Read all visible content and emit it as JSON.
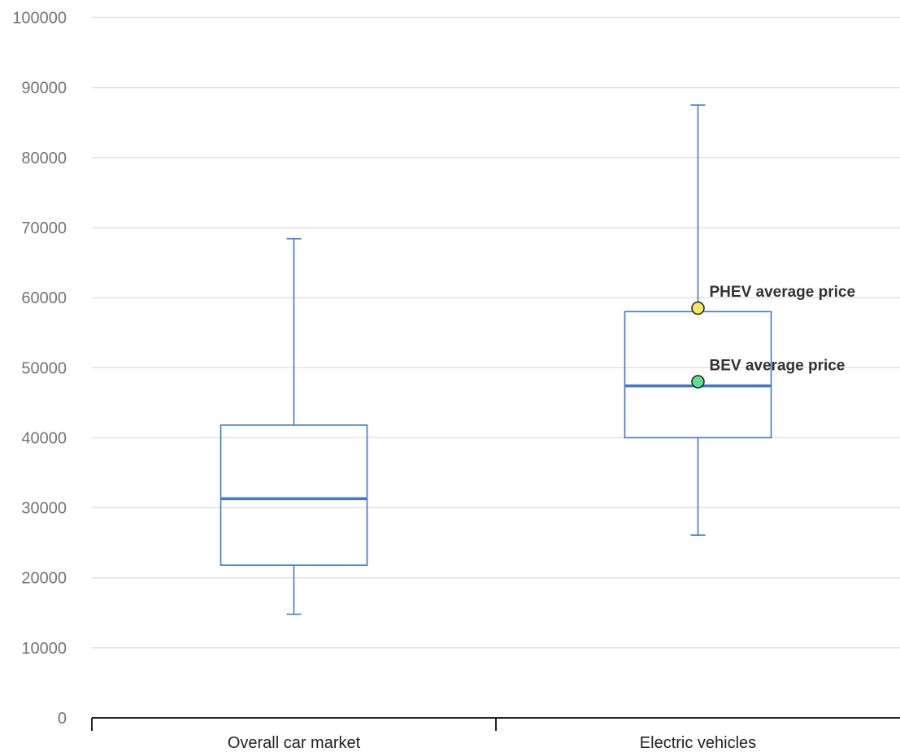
{
  "chart_data": {
    "type": "box",
    "title": "",
    "xlabel": "",
    "ylabel": "",
    "ylim": [
      0,
      100000
    ],
    "yticks": [
      "0",
      "10000",
      "20000",
      "30000",
      "40000",
      "50000",
      "60000",
      "70000",
      "80000",
      "90000",
      "100000"
    ],
    "grid": true,
    "categories": [
      "Overall car market",
      "Electric vehicles"
    ],
    "boxes": [
      {
        "category": "Overall car market",
        "min": 14800,
        "q1": 21800,
        "median": 31300,
        "q3": 41800,
        "max": 68400
      },
      {
        "category": "Electric vehicles",
        "min": 26100,
        "q1": 40000,
        "median": 47400,
        "q3": 58000,
        "max": 87500
      }
    ],
    "annotations": [
      {
        "label": "PHEV average price",
        "category": "Electric vehicles",
        "value": 58500,
        "color": "#f5e65a"
      },
      {
        "label": "BEV average price",
        "category": "Electric vehicles",
        "value": 48000,
        "color": "#5ee08a"
      }
    ],
    "colors": {
      "box": "#3f78cc",
      "grid": "#e3e3e3",
      "axis": "#222222"
    }
  }
}
